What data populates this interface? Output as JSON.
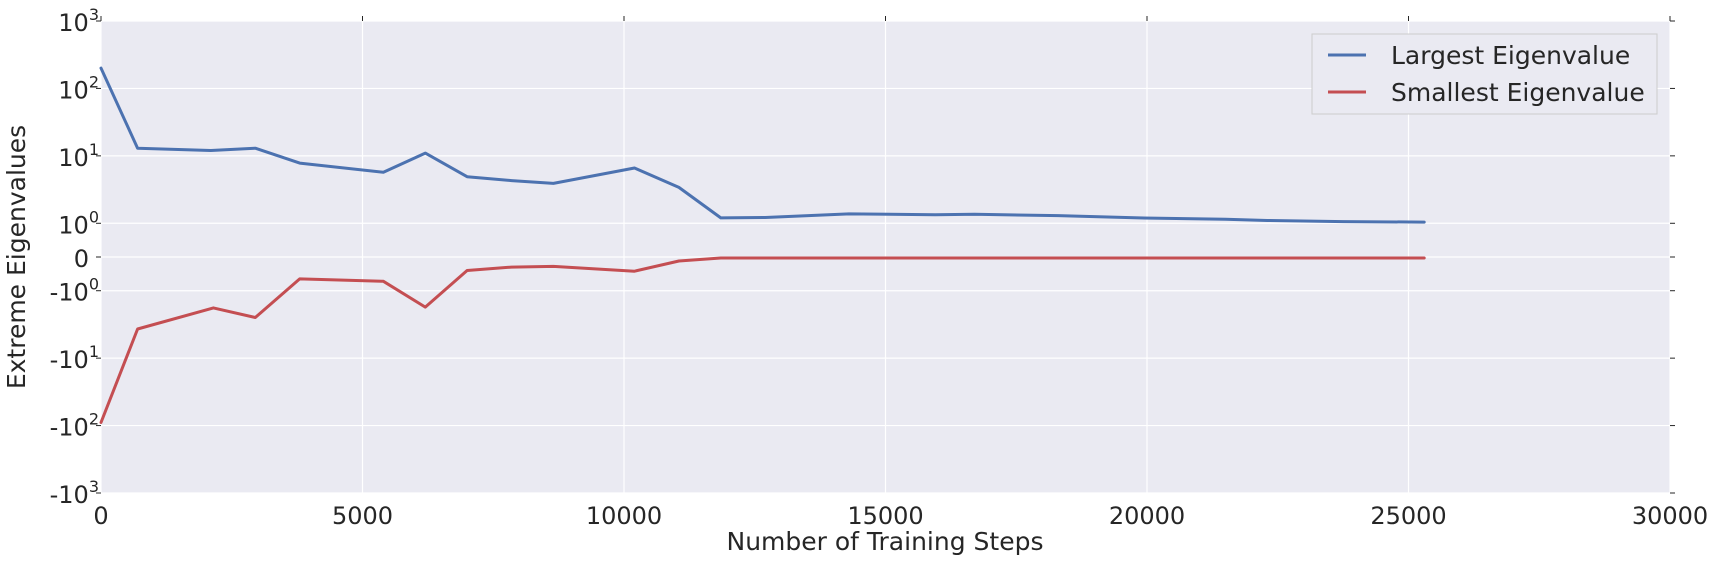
{
  "chart_data": {
    "type": "line",
    "title": "",
    "xlabel": "Number of Training Steps",
    "ylabel": "Extreme Eigenvalues",
    "xlim": [
      0,
      30000
    ],
    "ylim": [
      -1000,
      1000
    ],
    "yscale": "symlog",
    "grid": true,
    "legend_position": "top-right",
    "x_ticks": [
      0,
      5000,
      10000,
      15000,
      20000,
      25000,
      30000
    ],
    "x_tick_labels": [
      "0",
      "5000",
      "10000",
      "15000",
      "20000",
      "25000",
      "30000"
    ],
    "y_ticks": [
      1000,
      100,
      10,
      1,
      0,
      -1,
      -10,
      -100,
      -1000
    ],
    "y_tick_labels": [
      {
        "base": "10",
        "exp": "3"
      },
      {
        "base": "10",
        "exp": "2"
      },
      {
        "base": "10",
        "exp": "1"
      },
      {
        "base": "10",
        "exp": "0"
      },
      {
        "base": "0",
        "exp": ""
      },
      {
        "base": "-10",
        "exp": "0"
      },
      {
        "base": "-10",
        "exp": "1"
      },
      {
        "base": "-10",
        "exp": "2"
      },
      {
        "base": "-10",
        "exp": "3"
      }
    ],
    "series": [
      {
        "name": "Largest Eigenvalue",
        "color": "#4c72b0",
        "x": [
          0,
          700,
          2100,
          2950,
          3800,
          5400,
          6200,
          7000,
          7850,
          8650,
          10200,
          11050,
          11850,
          12700,
          14300,
          15950,
          16700,
          18300,
          19850,
          21500,
          22300,
          23750,
          25300
        ],
        "y": [
          200,
          13,
          12,
          13,
          7.8,
          5.7,
          11,
          4.9,
          4.3,
          3.9,
          6.6,
          3.4,
          1.2,
          1.22,
          1.38,
          1.34,
          1.36,
          1.3,
          1.2,
          1.15,
          1.1,
          1.06,
          1.04
        ]
      },
      {
        "name": "Smallest Eigenvalue",
        "color": "#c44e52",
        "x": [
          0,
          700,
          2150,
          2950,
          3800,
          5400,
          6200,
          7000,
          7850,
          8650,
          10200,
          11050,
          11850,
          25300
        ],
        "y": [
          -90,
          -3.7,
          -1.8,
          -2.5,
          -0.65,
          -0.72,
          -1.75,
          -0.4,
          -0.3,
          -0.28,
          -0.42,
          -0.12,
          -0.03,
          -0.03
        ]
      }
    ]
  }
}
